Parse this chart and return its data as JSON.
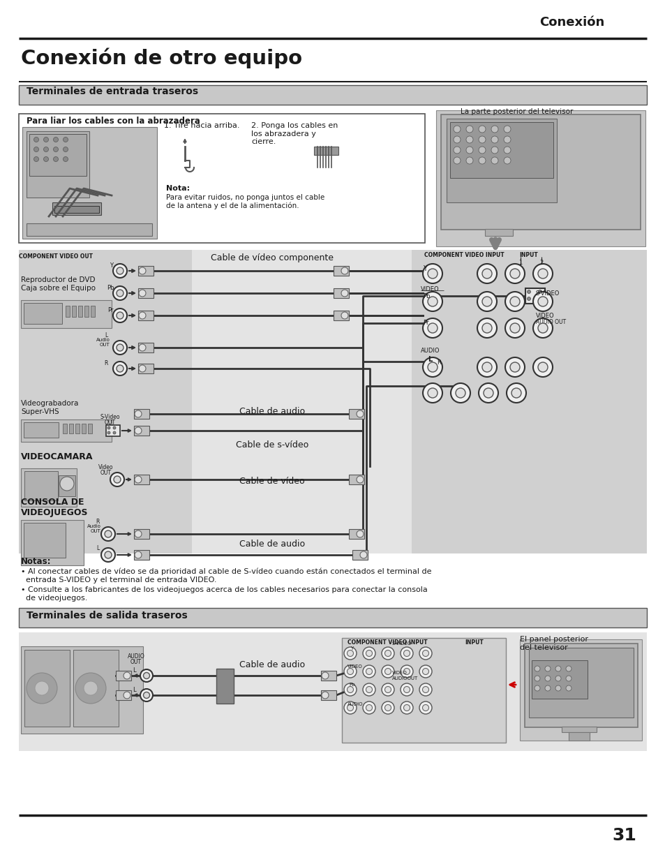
{
  "title_right": "Conexión",
  "title_main": "Conexión de otro equipo",
  "section1_title": "Terminales de entrada traseros",
  "section2_title": "Terminales de salida traseros",
  "box1_title": "Para liar los cables con la abrazadera",
  "step1": "1. Tire hacia arriba.",
  "step2": "2. Ponga los cables en\nlos abrazadera y\ncierre.",
  "nota_title": "Nota:",
  "nota_text": "Para evitar ruidos, no ponga juntos el cable\nde la antena y el de la alimentación.",
  "tv_label": "La parte posterior del televisor",
  "tv_label2": "El panel posterior\ndel televisor",
  "dvd_label": "Reproductor de DVD\nCaja sobre el Equipo",
  "comp_out": "COMPONENT VIDEO OUT",
  "comp_in": "COMPONENT VIDEO INPUT",
  "input_label": "INPUT",
  "cable_comp": "Cable de vídeo componente",
  "cable_audio1": "Cable de audio",
  "cable_svideo": "Cable de s-vídeo",
  "cable_video": "Cable de vídeo",
  "cable_audio2": "Cable de audio",
  "cable_audio3": "Cable de audio",
  "vcr_label": "Videograbadora\nSuper-VHS",
  "camcorder_label": "VIDEOCAMARA",
  "console_label": "CONSOLA DE\nVIDEOJUEGOS",
  "notas_title": "Notas:",
  "nota1": "• Al conectar cables de vídeo se da prioridad al cable de S-vídeo cuando están conectados el terminal de\n  entrada S-VIDEO y el terminal de entrada VIDEO.",
  "nota2": "• Consulte a los fabricantes de los videojuegos acerca de los cables necesarios para conectar la consola\n  de videojuegos.",
  "page_num": "31",
  "bg_color": "#ffffff",
  "section_bg": "#c8c8c8",
  "text_dark": "#1a1a1a",
  "gray_panel": "#d8d8d8",
  "mid_gray": "#b8b8b8"
}
